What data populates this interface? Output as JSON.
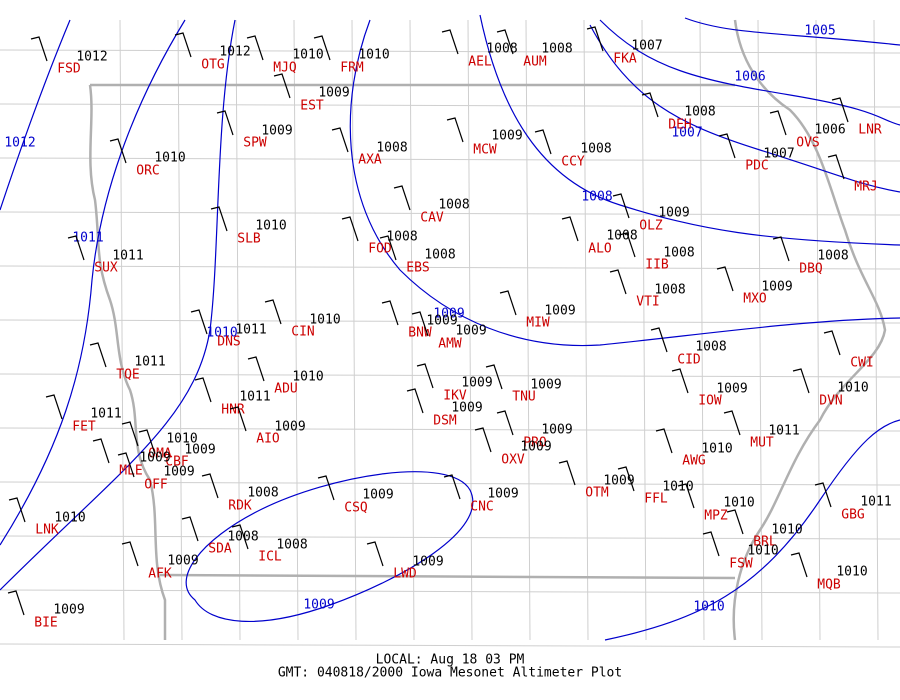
{
  "stations": [
    {
      "id": "FSD",
      "altimeter": 1012
    },
    {
      "id": "OTG",
      "altimeter": 1012
    },
    {
      "id": "MJQ",
      "altimeter": 1010
    },
    {
      "id": "FRM",
      "altimeter": 1010
    },
    {
      "id": "EST",
      "altimeter": 1009
    },
    {
      "id": "AEL",
      "altimeter": 1008
    },
    {
      "id": "AUM",
      "altimeter": 1008
    },
    {
      "id": "FKA",
      "altimeter": 1007
    },
    {
      "id": "SPW",
      "altimeter": 1009
    },
    {
      "id": "ORC",
      "altimeter": 1010
    },
    {
      "id": "AXA",
      "altimeter": 1008
    },
    {
      "id": "MCW",
      "altimeter": 1009
    },
    {
      "id": "CCY",
      "altimeter": 1008
    },
    {
      "id": "DEH",
      "altimeter": 1008
    },
    {
      "id": "PDC",
      "altimeter": 1007
    },
    {
      "id": "OVS",
      "altimeter": 1006
    },
    {
      "id": "LNR"
    },
    {
      "id": "MRJ"
    },
    {
      "id": "CAV",
      "altimeter": 1008
    },
    {
      "id": "SLB",
      "altimeter": 1010
    },
    {
      "id": "FOD",
      "altimeter": 1008
    },
    {
      "id": "EBS",
      "altimeter": 1008
    },
    {
      "id": "ALO",
      "altimeter": 1008
    },
    {
      "id": "OLZ",
      "altimeter": 1009
    },
    {
      "id": "IIB",
      "altimeter": 1008
    },
    {
      "id": "VTI",
      "altimeter": 1008
    },
    {
      "id": "DBQ",
      "altimeter": 1008
    },
    {
      "id": "MXO",
      "altimeter": 1009
    },
    {
      "id": "SUX",
      "altimeter": 1011
    },
    {
      "id": "DNS",
      "altimeter": 1011
    },
    {
      "id": "CIN",
      "altimeter": 1010
    },
    {
      "id": "BNW",
      "altimeter": 1009
    },
    {
      "id": "AMW",
      "altimeter": 1009
    },
    {
      "id": "MIW",
      "altimeter": 1009
    },
    {
      "id": "CID",
      "altimeter": 1008
    },
    {
      "id": "TQE",
      "altimeter": 1011
    },
    {
      "id": "ADU",
      "altimeter": 1010
    },
    {
      "id": "HNR",
      "altimeter": 1011
    },
    {
      "id": "IKV",
      "altimeter": 1009
    },
    {
      "id": "TNU",
      "altimeter": 1009
    },
    {
      "id": "IOW",
      "altimeter": 1009
    },
    {
      "id": "DVN",
      "altimeter": 1010
    },
    {
      "id": "CWI"
    },
    {
      "id": "FET",
      "altimeter": 1011
    },
    {
      "id": "DSM",
      "altimeter": 1009
    },
    {
      "id": "AIO",
      "altimeter": 1009
    },
    {
      "id": "PRO",
      "altimeter": 1009
    },
    {
      "id": "OXV",
      "altimeter": 1009
    },
    {
      "id": "MUT",
      "altimeter": 1011
    },
    {
      "id": "OMA",
      "altimeter": 1010
    },
    {
      "id": "CBF",
      "altimeter": 1009
    },
    {
      "id": "MLE",
      "altimeter": 1009
    },
    {
      "id": "OFF",
      "altimeter": 1009
    },
    {
      "id": "AWG",
      "altimeter": 1010
    },
    {
      "id": "OTM",
      "altimeter": 1009
    },
    {
      "id": "FFL",
      "altimeter": 1010
    },
    {
      "id": "RDK",
      "altimeter": 1008
    },
    {
      "id": "CSQ",
      "altimeter": 1009
    },
    {
      "id": "CNC",
      "altimeter": 1009
    },
    {
      "id": "LNK",
      "altimeter": 1010
    },
    {
      "id": "MPZ",
      "altimeter": 1010
    },
    {
      "id": "GBG",
      "altimeter": 1011
    },
    {
      "id": "SDA",
      "altimeter": 1008
    },
    {
      "id": "BRL",
      "altimeter": 1010
    },
    {
      "id": "ICL",
      "altimeter": 1008
    },
    {
      "id": "FSW",
      "altimeter": 1010
    },
    {
      "id": "AFK",
      "altimeter": 1009
    },
    {
      "id": "LWD",
      "altimeter": 1009
    },
    {
      "id": "MQB",
      "altimeter": 1010
    },
    {
      "id": "BIE",
      "altimeter": 1009
    }
  ],
  "isobars": [
    {
      "label": 1005
    },
    {
      "label": 1006
    },
    {
      "label": 1007
    },
    {
      "label": 1008
    },
    {
      "label": 1009
    },
    {
      "label": 1009
    },
    {
      "label": 1010
    },
    {
      "label": 1010
    },
    {
      "label": 1011
    },
    {
      "label": 1012
    }
  ],
  "footer": {
    "local": "LOCAL: Aug 18 03 PM",
    "gmt": "GMT: 040818/2000 Iowa Mesonet Altimeter Plot"
  }
}
